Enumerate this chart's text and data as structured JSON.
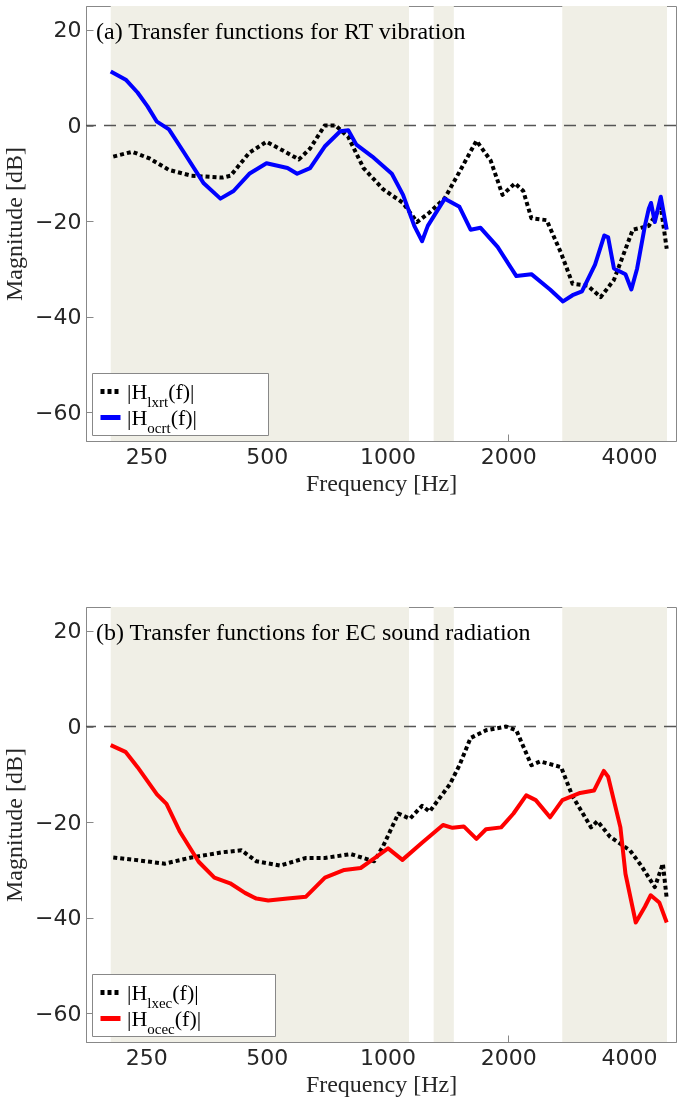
{
  "chart_data": [
    {
      "type": "line",
      "title": "(a) Transfer functions for RT vibration",
      "xlabel": "Frequency [Hz]",
      "ylabel": "Magnitude [dB]",
      "xlim": [
        177,
        5240
      ],
      "ylim": [
        -66,
        25
      ],
      "xticks": [
        250,
        500,
        1000,
        2000,
        4000
      ],
      "yticks": [
        -60,
        -40,
        -20,
        0,
        20
      ],
      "log": "x",
      "grid": false,
      "legend": "bottom left",
      "ref_lines": [
        {
          "axis": "y",
          "value": 0,
          "color": "#555555",
          "line_style": "dashed"
        }
      ],
      "bands": [
        {
          "axis": "x",
          "from": 204,
          "to": 1131,
          "color": "#f0efe6"
        },
        {
          "axis": "x",
          "from": 1303,
          "to": 1463,
          "color": "#f0efe6"
        },
        {
          "axis": "x",
          "from": 2727,
          "to": 4976,
          "color": "#f0efe6"
        }
      ],
      "series": [
        {
          "name": "|H$_{lxrt}$(f)|",
          "color": "#000000",
          "line_style": "dotted",
          "x": [
            207,
            231,
            255,
            285,
            324,
            388,
            406,
            452,
            499,
            550,
            601,
            641,
            697,
            742,
            798,
            871,
            974,
            1093,
            1184,
            1273,
            1389,
            1511,
            1666,
            1807,
            1935,
            2078,
            2180,
            2284,
            2493,
            2709,
            2893,
            3155,
            3400,
            3669,
            4088,
            4482,
            4802,
            4968
          ],
          "values": [
            -6.5,
            -5.5,
            -6.9,
            -9.3,
            -10.5,
            -10.9,
            -10.5,
            -5.7,
            -3.4,
            -5.3,
            -7.1,
            -4.8,
            0,
            0,
            -2.4,
            -8.9,
            -13.3,
            -16.2,
            -20.2,
            -18.2,
            -15.2,
            -9.7,
            -3.2,
            -7.3,
            -14.5,
            -12.1,
            -13.7,
            -19.4,
            -19.8,
            -26.7,
            -33.1,
            -33.5,
            -35.9,
            -32.3,
            -21.8,
            -21,
            -17,
            -25.8
          ]
        },
        {
          "name": "|H$_{ocrt}$(f)|",
          "color": "#0000ff",
          "line_style": "solid",
          "x": [
            204,
            223,
            238,
            252,
            266,
            285,
            311,
            348,
            383,
            413,
            452,
            499,
            563,
            595,
            641,
            697,
            762,
            798,
            836,
            916,
            1025,
            1093,
            1166,
            1219,
            1260,
            1389,
            1511,
            1611,
            1706,
            1881,
            2095,
            2284,
            2542,
            2739,
            2893,
            3054,
            3292,
            3472,
            3549,
            3669,
            3920,
            4055,
            4192,
            4383,
            4482,
            4540,
            4640,
            4802,
            4968
          ],
          "values": [
            11.3,
            9.5,
            6.9,
            4,
            0.8,
            -0.8,
            -5.7,
            -12.1,
            -15.3,
            -13.7,
            -10.1,
            -7.9,
            -8.9,
            -10.1,
            -8.9,
            -4.4,
            -1.2,
            -1,
            -4,
            -6.5,
            -10.1,
            -14.5,
            -21,
            -24.2,
            -21,
            -15.3,
            -17,
            -21.8,
            -21.4,
            -25.4,
            -31.5,
            -31.1,
            -34.3,
            -36.8,
            -35.5,
            -34.7,
            -29.1,
            -23,
            -23.4,
            -29.9,
            -31.1,
            -34.3,
            -29.9,
            -21,
            -17.4,
            -16.2,
            -20.2,
            -14.9,
            -21.8
          ]
        }
      ]
    },
    {
      "type": "line",
      "title": "(b) Transfer functions for EC sound radiation",
      "xlabel": "Frequency [Hz]",
      "ylabel": "Magnitude [dB]",
      "xlim": [
        177,
        5240
      ],
      "ylim": [
        -66,
        25
      ],
      "xticks": [
        250,
        500,
        1000,
        2000,
        4000
      ],
      "yticks": [
        -60,
        -40,
        -20,
        0,
        20
      ],
      "log": "x",
      "grid": false,
      "legend": "bottom left",
      "ref_lines": [
        {
          "axis": "y",
          "value": 0,
          "color": "#555555",
          "line_style": "dashed"
        }
      ],
      "bands": [
        {
          "axis": "x",
          "from": 204,
          "to": 1131,
          "color": "#f0efe6"
        },
        {
          "axis": "x",
          "from": 1303,
          "to": 1463,
          "color": "#f0efe6"
        },
        {
          "axis": "x",
          "from": 2727,
          "to": 4976,
          "color": "#f0efe6"
        }
      ],
      "series": [
        {
          "name": "|H$_{lxec}$(f)|",
          "color": "#000000",
          "line_style": "dotted",
          "x": [
            207,
            234,
            278,
            324,
            388,
            432,
            471,
            539,
            626,
            698,
            810,
            926,
            974,
            1064,
            1137,
            1219,
            1273,
            1430,
            1511,
            1611,
            1760,
            1975,
            2095,
            2284,
            2403,
            2709,
            2893,
            3218,
            3338,
            3591,
            4022,
            4291,
            4640,
            4860,
            4968
          ],
          "values": [
            -27.4,
            -27.9,
            -28.7,
            -27.4,
            -26.3,
            -25.9,
            -28.2,
            -29.1,
            -27.5,
            -27.5,
            -26.7,
            -28.2,
            -25.1,
            -18.2,
            -19.3,
            -16.6,
            -17.8,
            -12.1,
            -8.1,
            -2.4,
            -0.8,
            0,
            -0.8,
            -8.1,
            -7.3,
            -8.5,
            -14.6,
            -21.1,
            -19.8,
            -23.1,
            -25.9,
            -29.1,
            -33.6,
            -28.7,
            -36
          ]
        },
        {
          "name": "|H$_{ocec}$(f)|",
          "color": "#ff0000",
          "line_style": "solid",
          "x": [
            204,
            222,
            238,
            266,
            281,
            303,
            338,
            370,
            405,
            441,
            471,
            504,
            563,
            626,
            698,
            780,
            857,
            930,
            1003,
            1089,
            1219,
            1375,
            1452,
            1549,
            1666,
            1760,
            1920,
            2061,
            2217,
            2342,
            2542,
            2729,
            3021,
            3272,
            3462,
            3549,
            3808,
            3920,
            4159,
            4383,
            4532,
            4760,
            4968
          ],
          "values": [
            -3.9,
            -5.3,
            -8.5,
            -14.2,
            -16.2,
            -21.9,
            -28.3,
            -31.6,
            -32.8,
            -34.8,
            -36,
            -36.4,
            -36,
            -35.6,
            -31.6,
            -30,
            -29.6,
            -27.5,
            -25.5,
            -27.9,
            -24.3,
            -20.6,
            -21.2,
            -20.9,
            -23.5,
            -21.5,
            -21.1,
            -18.2,
            -14.4,
            -15.4,
            -19,
            -15.4,
            -13.9,
            -13.4,
            -9.3,
            -10.5,
            -21.1,
            -30.8,
            -41,
            -37.7,
            -35.3,
            -36.8,
            -41
          ]
        }
      ]
    }
  ]
}
